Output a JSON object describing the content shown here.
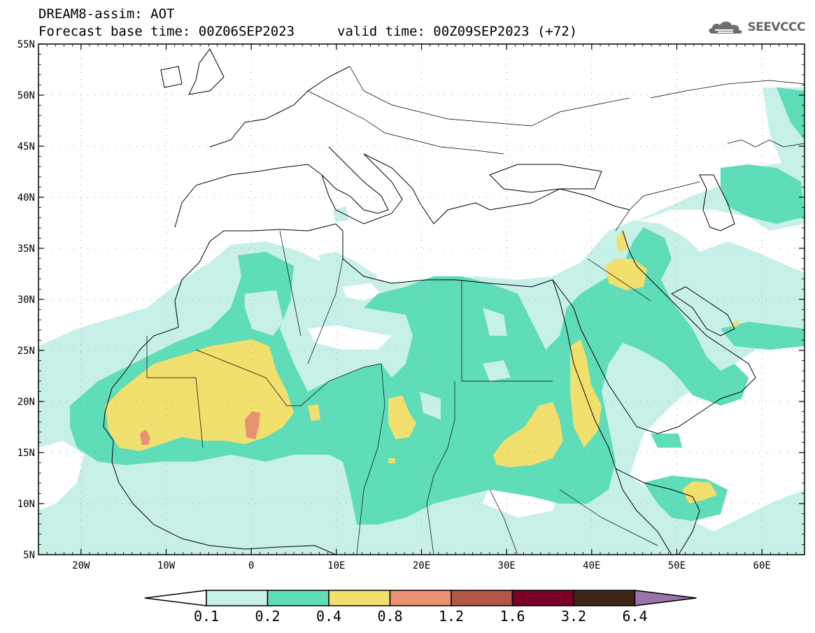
{
  "header": {
    "line1": "DREAM8-assim: AOT",
    "line2": "Forecast base time: 00Z06SEP2023",
    "valid": "valid time: 00Z09SEP2023 (+72)",
    "logo_text": "SEEVCCC",
    "logo_icon": "cloud-icon"
  },
  "map": {
    "lon_range": [
      -25,
      65
    ],
    "lat_range": [
      5,
      55
    ],
    "grid": "dotted",
    "lat_ticks": [
      "55N",
      "50N",
      "45N",
      "40N",
      "35N",
      "30N",
      "25N",
      "20N",
      "15N",
      "10N",
      "5N"
    ],
    "lon_ticks": [
      "20W",
      "10W",
      "0",
      "10E",
      "20E",
      "30E",
      "40E",
      "50E",
      "60E"
    ]
  },
  "colorbar": {
    "labels": [
      "0.1",
      "0.2",
      "0.4",
      "0.8",
      "1.2",
      "1.6",
      "3.2",
      "6.4"
    ],
    "colors": [
      "#c6f0e8",
      "#5fdcb8",
      "#f2e06e",
      "#e99271",
      "#b35848",
      "#7a0028",
      "#3d2719",
      "#9a74a8"
    ]
  }
}
